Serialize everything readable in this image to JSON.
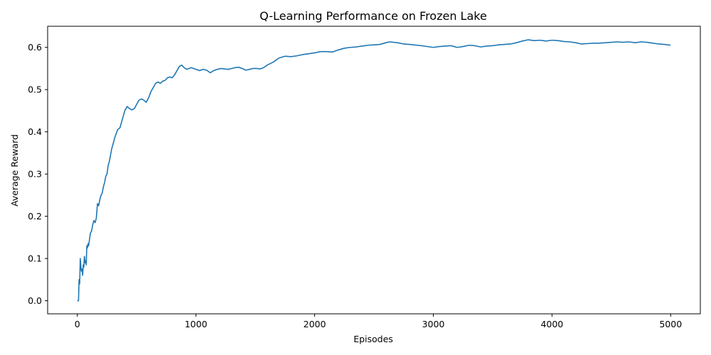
{
  "chart_data": {
    "type": "line",
    "title": "Q-Learning Performance on Frozen Lake",
    "xlabel": "Episodes",
    "ylabel": "Average Reward",
    "xlim": [
      -250,
      5250
    ],
    "ylim": [
      -0.031,
      0.65
    ],
    "xticks": [
      0,
      1000,
      2000,
      3000,
      4000,
      5000
    ],
    "yticks": [
      0.0,
      0.1,
      0.2,
      0.3,
      0.4,
      0.5,
      0.6
    ],
    "ytick_labels": [
      "0.0",
      "0.1",
      "0.2",
      "0.3",
      "0.4",
      "0.5",
      "0.6"
    ],
    "grid": false,
    "legend": "none",
    "line_color": "#1f77b4",
    "series": [
      {
        "x": [
          0,
          10,
          15,
          20,
          25,
          30,
          35,
          40,
          45,
          50,
          55,
          60,
          65,
          70,
          75,
          80,
          85,
          90,
          95,
          100,
          110,
          120,
          130,
          140,
          150,
          160,
          170,
          180,
          190,
          200,
          210,
          220,
          230,
          240,
          250,
          260,
          270,
          280,
          290,
          300,
          320,
          340,
          360,
          380,
          400,
          420,
          440,
          460,
          480,
          500,
          520,
          540,
          560,
          580,
          600,
          620,
          640,
          660,
          680,
          700,
          720,
          740,
          760,
          780,
          800,
          820,
          840,
          860,
          880,
          900,
          920,
          940,
          960,
          980,
          1000,
          1030,
          1060,
          1090,
          1120,
          1150,
          1180,
          1210,
          1240,
          1270,
          1300,
          1330,
          1360,
          1390,
          1420,
          1450,
          1480,
          1510,
          1540,
          1570,
          1600,
          1650,
          1700,
          1750,
          1800,
          1850,
          1900,
          1950,
          2000,
          2050,
          2100,
          2150,
          2200,
          2250,
          2300,
          2350,
          2400,
          2450,
          2500,
          2550,
          2600,
          2630,
          2700,
          2750,
          2800,
          2900,
          3000,
          3050,
          3100,
          3150,
          3200,
          3250,
          3300,
          3350,
          3400,
          3450,
          3500,
          3550,
          3600,
          3650,
          3700,
          3750,
          3800,
          3850,
          3900,
          3950,
          4000,
          4050,
          4100,
          4150,
          4200,
          4250,
          4300,
          4350,
          4400,
          4450,
          4500,
          4550,
          4600,
          4650,
          4700,
          4750,
          4800,
          4850,
          4900,
          4950,
          5000
        ],
        "y": [
          0.0,
          0.0,
          0.05,
          0.04,
          0.1,
          0.08,
          0.07,
          0.075,
          0.06,
          0.085,
          0.08,
          0.105,
          0.09,
          0.095,
          0.085,
          0.13,
          0.125,
          0.135,
          0.13,
          0.14,
          0.16,
          0.165,
          0.18,
          0.19,
          0.185,
          0.195,
          0.23,
          0.225,
          0.24,
          0.25,
          0.255,
          0.27,
          0.28,
          0.295,
          0.3,
          0.32,
          0.33,
          0.345,
          0.36,
          0.37,
          0.39,
          0.405,
          0.41,
          0.43,
          0.45,
          0.46,
          0.455,
          0.452,
          0.455,
          0.465,
          0.475,
          0.478,
          0.475,
          0.47,
          0.48,
          0.495,
          0.505,
          0.515,
          0.518,
          0.515,
          0.52,
          0.522,
          0.528,
          0.53,
          0.528,
          0.535,
          0.545,
          0.555,
          0.558,
          0.552,
          0.548,
          0.55,
          0.552,
          0.55,
          0.548,
          0.545,
          0.548,
          0.546,
          0.54,
          0.545,
          0.548,
          0.55,
          0.549,
          0.548,
          0.55,
          0.552,
          0.553,
          0.55,
          0.546,
          0.548,
          0.55,
          0.55,
          0.549,
          0.552,
          0.558,
          0.565,
          0.575,
          0.579,
          0.578,
          0.58,
          0.583,
          0.585,
          0.587,
          0.59,
          0.59,
          0.589,
          0.594,
          0.598,
          0.6,
          0.601,
          0.603,
          0.605,
          0.606,
          0.607,
          0.611,
          0.613,
          0.611,
          0.608,
          0.607,
          0.604,
          0.6,
          0.602,
          0.603,
          0.604,
          0.6,
          0.602,
          0.605,
          0.604,
          0.601,
          0.603,
          0.604,
          0.606,
          0.607,
          0.608,
          0.611,
          0.615,
          0.618,
          0.616,
          0.617,
          0.615,
          0.617,
          0.616,
          0.614,
          0.613,
          0.611,
          0.608,
          0.609,
          0.61,
          0.61,
          0.611,
          0.612,
          0.613,
          0.612,
          0.613,
          0.611,
          0.613,
          0.612,
          0.61,
          0.608,
          0.607,
          0.605
        ]
      }
    ]
  }
}
